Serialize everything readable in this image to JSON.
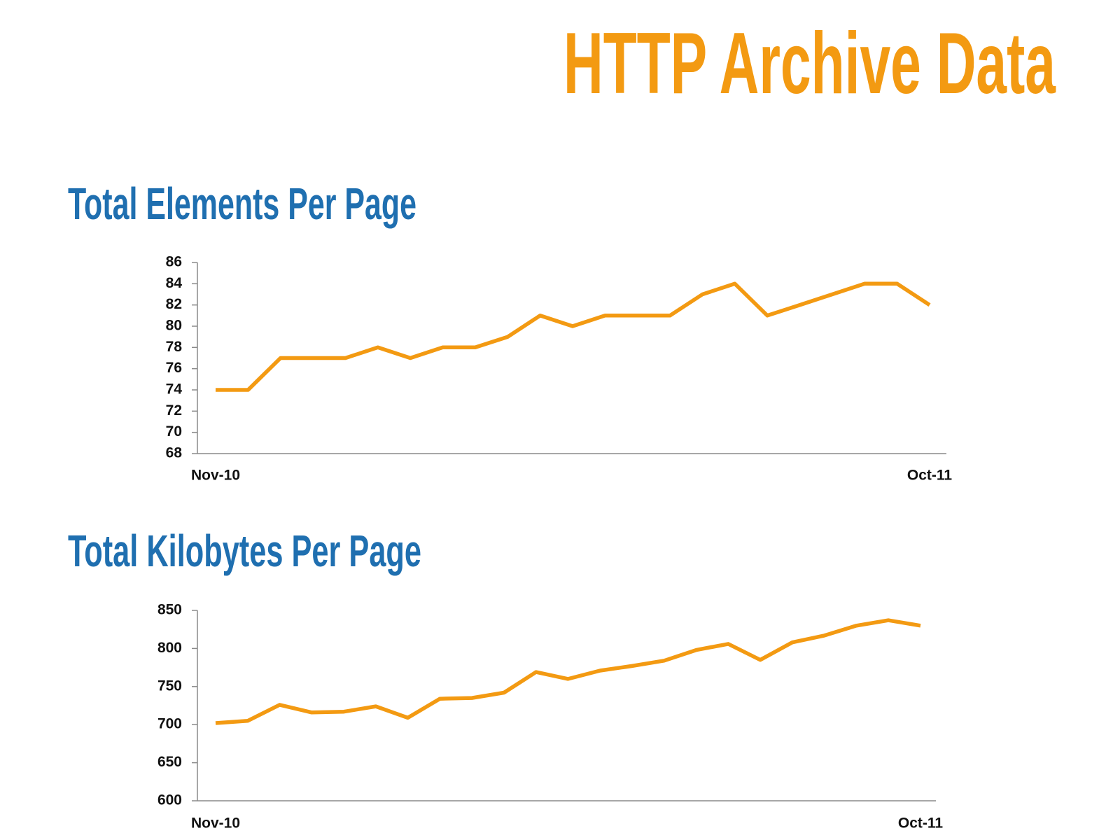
{
  "title": "HTTP Archive Data",
  "chart_data": [
    {
      "type": "line",
      "title": "Total Elements Per Page",
      "categories": [
        "Nov-10",
        null,
        null,
        null,
        null,
        null,
        null,
        null,
        null,
        null,
        null,
        null,
        null,
        null,
        null,
        null,
        null,
        null,
        null,
        null,
        null,
        null,
        "Oct-11"
      ],
      "series": [
        {
          "color": "#f39a12",
          "values": [
            74,
            74,
            77,
            77,
            77,
            78,
            77,
            78,
            78,
            79,
            81,
            80,
            81,
            81,
            81,
            83,
            84,
            81,
            82,
            83,
            84,
            84,
            82
          ]
        }
      ],
      "ylim": [
        68,
        86
      ],
      "yticks": [
        68,
        70,
        72,
        74,
        76,
        78,
        80,
        82,
        84,
        86
      ]
    },
    {
      "type": "line",
      "title": "Total Kilobytes Per Page",
      "categories": [
        "Nov-10",
        null,
        null,
        null,
        null,
        null,
        null,
        null,
        null,
        null,
        null,
        null,
        null,
        null,
        null,
        null,
        null,
        null,
        null,
        null,
        null,
        null,
        "Oct-11"
      ],
      "series": [
        {
          "color": "#f39a12",
          "values": [
            702,
            705,
            726,
            716,
            717,
            724,
            709,
            734,
            735,
            742,
            769,
            760,
            771,
            777,
            784,
            798,
            806,
            785,
            808,
            817,
            830,
            837,
            830
          ]
        }
      ],
      "ylim": [
        600,
        850
      ],
      "yticks": [
        600,
        650,
        700,
        750,
        800,
        850
      ]
    }
  ]
}
